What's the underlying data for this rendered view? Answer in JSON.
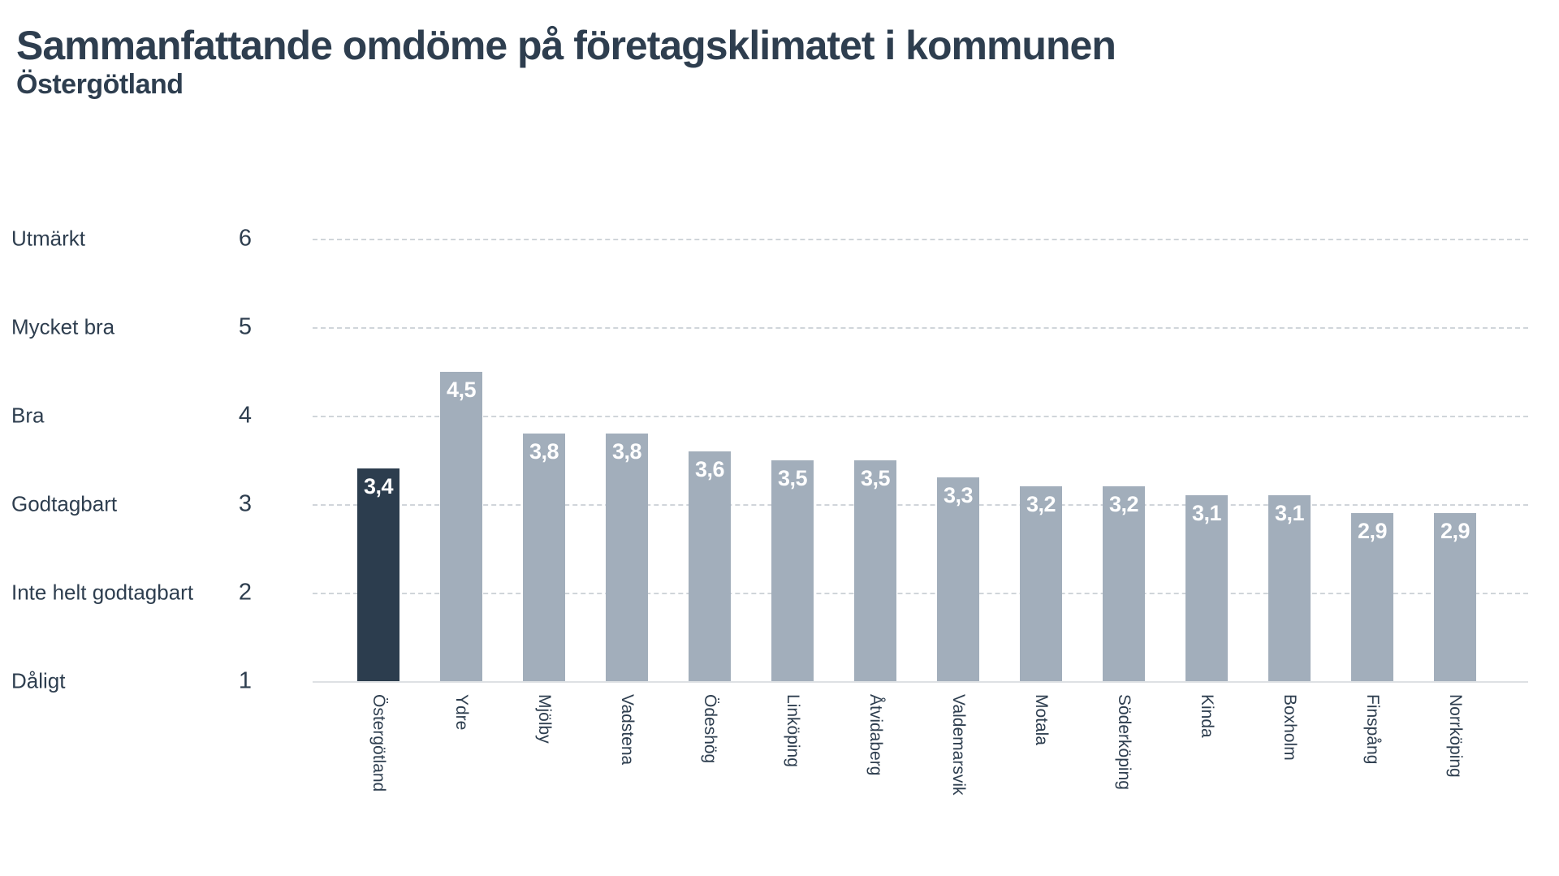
{
  "title": "Sammanfattande omdöme på företagsklimatet i kommunen",
  "subtitle": "Östergötland",
  "colors": {
    "text": "#2e3e4f",
    "bar": "#a2aebb",
    "highlight_bar": "#2c3d4e",
    "value_label": "#ffffff",
    "gridline": "#d0d5da",
    "baseline": "#dee1e4"
  },
  "chart_data": {
    "type": "bar",
    "title": "Sammanfattande omdöme på företagsklimatet i kommunen",
    "subtitle": "Östergötland",
    "categories": [
      "Östergötland",
      "Ydre",
      "Mjölby",
      "Vadstena",
      "Ödeshög",
      "Linköping",
      "Åtvidaberg",
      "Valdemarsvik",
      "Motala",
      "Söderköping",
      "Kinda",
      "Boxholm",
      "Finspång",
      "Norrköping"
    ],
    "values": [
      3.4,
      4.5,
      3.8,
      3.8,
      3.6,
      3.5,
      3.5,
      3.3,
      3.2,
      3.2,
      3.1,
      3.1,
      2.9,
      2.9
    ],
    "value_labels": [
      "3,4",
      "4,5",
      "3,8",
      "3,8",
      "3,6",
      "3,5",
      "3,5",
      "3,3",
      "3,2",
      "3,2",
      "3,1",
      "3,1",
      "2,9",
      "2,9"
    ],
    "highlight_index": 0,
    "ylim": [
      1,
      6
    ],
    "grid": "horizontal-dashed",
    "legend": "none",
    "y_ticks": [
      {
        "value": 6,
        "label": "6",
        "text": "Utmärkt"
      },
      {
        "value": 5,
        "label": "5",
        "text": "Mycket bra"
      },
      {
        "value": 4,
        "label": "4",
        "text": "Bra"
      },
      {
        "value": 3,
        "label": "3",
        "text": "Godtagbart"
      },
      {
        "value": 2,
        "label": "2",
        "text": "Inte helt godtagbart"
      },
      {
        "value": 1,
        "label": "1",
        "text": "Dåligt"
      }
    ]
  }
}
